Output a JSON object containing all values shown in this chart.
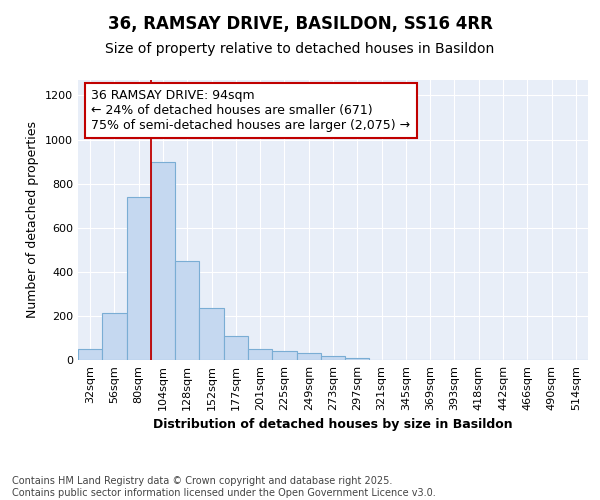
{
  "title1": "36, RAMSAY DRIVE, BASILDON, SS16 4RR",
  "title2": "Size of property relative to detached houses in Basildon",
  "xlabel": "Distribution of detached houses by size in Basildon",
  "ylabel": "Number of detached properties",
  "categories": [
    "32sqm",
    "56sqm",
    "80sqm",
    "104sqm",
    "128sqm",
    "152sqm",
    "177sqm",
    "201sqm",
    "225sqm",
    "249sqm",
    "273sqm",
    "297sqm",
    "321sqm",
    "345sqm",
    "369sqm",
    "393sqm",
    "418sqm",
    "442sqm",
    "466sqm",
    "490sqm",
    "514sqm"
  ],
  "values": [
    50,
    215,
    740,
    900,
    450,
    235,
    110,
    50,
    40,
    30,
    20,
    10,
    0,
    0,
    0,
    0,
    0,
    0,
    0,
    0,
    0
  ],
  "bar_color": "#c5d8f0",
  "bar_edge_color": "#7aadd4",
  "vline_x_index": 2.5,
  "vline_color": "#c00000",
  "annotation_text": "36 RAMSAY DRIVE: 94sqm\n← 24% of detached houses are smaller (671)\n75% of semi-detached houses are larger (2,075) →",
  "annotation_box_edgecolor": "#c00000",
  "ylim": [
    0,
    1270
  ],
  "yticks": [
    0,
    200,
    400,
    600,
    800,
    1000,
    1200
  ],
  "background_color": "#e8eef8",
  "footer_text": "Contains HM Land Registry data © Crown copyright and database right 2025.\nContains public sector information licensed under the Open Government Licence v3.0.",
  "title1_fontsize": 12,
  "title2_fontsize": 10,
  "annotation_fontsize": 9,
  "axis_label_fontsize": 9,
  "tick_fontsize": 8,
  "footer_fontsize": 7
}
